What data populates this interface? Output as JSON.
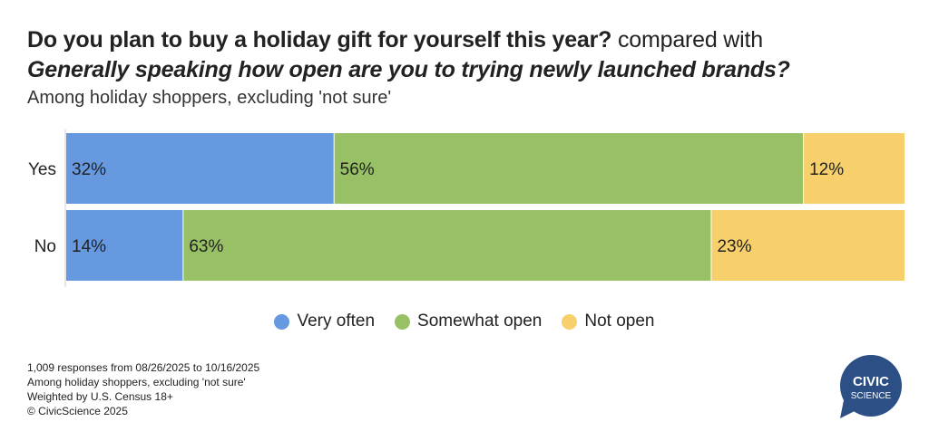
{
  "title": {
    "bold": "Do you plan to buy a holiday gift for yourself this year?",
    "regular": " compared with",
    "italic": "Generally speaking how open are you to trying newly launched brands?",
    "subtitle": "Among holiday shoppers, excluding 'not sure'"
  },
  "chart_data": {
    "type": "bar",
    "orientation": "horizontal",
    "stacked": "100%",
    "categories": [
      "Yes",
      "No"
    ],
    "series": [
      {
        "name": "Very often",
        "color": "#6699e0",
        "values": [
          32,
          14
        ],
        "labels": [
          "32%",
          "14%"
        ]
      },
      {
        "name": "Somewhat open",
        "color": "#98c165",
        "values": [
          56,
          63
        ],
        "labels": [
          "56%",
          "63%"
        ]
      },
      {
        "name": "Not open",
        "color": "#f7d06b",
        "values": [
          12,
          23
        ],
        "labels": [
          "12%",
          "23%"
        ]
      }
    ],
    "xlim": [
      0,
      100
    ],
    "grid": false,
    "legend": "bottom-center"
  },
  "footer": {
    "lines": [
      "1,009 responses from 08/26/2025 to 10/16/2025",
      "Among holiday shoppers, excluding 'not sure'",
      "Weighted by U.S. Census 18+",
      "© CivicScience 2025"
    ]
  },
  "logo": {
    "line1": "CIVIC",
    "line2": "SCIENCE",
    "color": "#2c4f85"
  }
}
